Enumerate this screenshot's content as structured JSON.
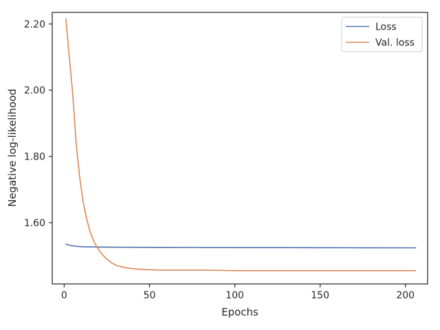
{
  "chart_data": {
    "type": "line",
    "xlabel": "Epochs",
    "ylabel": "Negative log-likelihood",
    "xlim": [
      -7,
      213
    ],
    "ylim": [
      1.415,
      2.235
    ],
    "xticks": [
      0,
      50,
      100,
      150,
      200
    ],
    "xtick_labels": [
      "0",
      "50",
      "100",
      "150",
      "200"
    ],
    "yticks": [
      1.6,
      1.8,
      2.0,
      2.2
    ],
    "ytick_labels": [
      "1.60",
      "1.80",
      "2.00",
      "2.20"
    ],
    "grid": false,
    "legend_position": "top-right",
    "series": [
      {
        "name": "Loss",
        "color": "#4c72b0",
        "x": [
          1,
          3,
          5,
          8,
          12,
          20,
          30,
          50,
          75,
          100,
          125,
          150,
          175,
          206
        ],
        "values": [
          1.535,
          1.532,
          1.53,
          1.528,
          1.527,
          1.5265,
          1.526,
          1.5255,
          1.525,
          1.5248,
          1.5246,
          1.5244,
          1.5242,
          1.524
        ]
      },
      {
        "name": "Val. loss",
        "color": "#dd8452",
        "x": [
          1,
          3,
          5,
          7,
          9,
          11,
          13,
          15,
          17,
          19,
          21,
          23,
          25,
          28,
          31,
          35,
          40,
          45,
          50,
          55,
          60,
          70,
          80,
          90,
          100,
          120,
          140,
          160,
          180,
          206
        ],
        "values": [
          2.215,
          2.1,
          1.99,
          1.84,
          1.74,
          1.665,
          1.615,
          1.575,
          1.548,
          1.528,
          1.512,
          1.5,
          1.49,
          1.478,
          1.47,
          1.465,
          1.461,
          1.459,
          1.458,
          1.457,
          1.457,
          1.457,
          1.457,
          1.456,
          1.455,
          1.455,
          1.455,
          1.455,
          1.455,
          1.455
        ]
      }
    ]
  }
}
